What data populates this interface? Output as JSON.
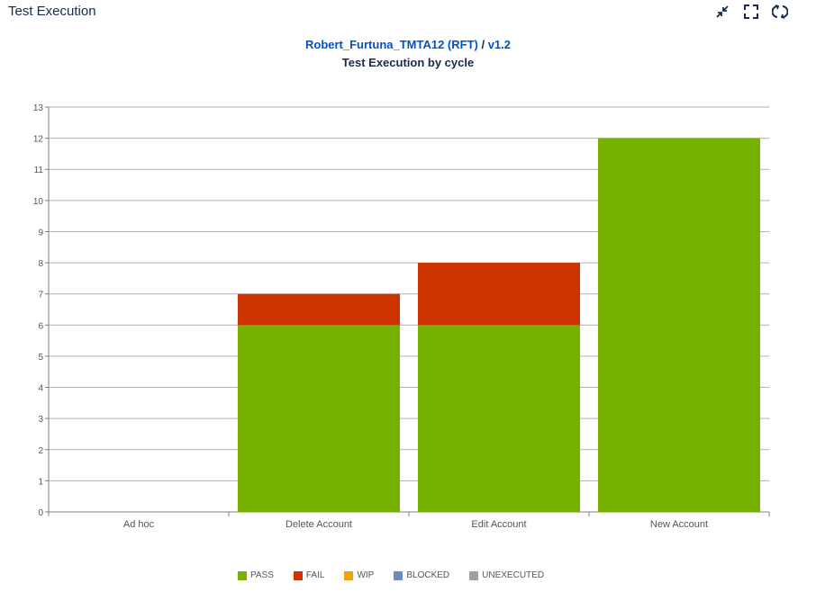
{
  "panel": {
    "title": "Test Execution"
  },
  "header": {
    "project_link": "Robert_Furtuna_TMTA12 (RFT)",
    "separator": " / ",
    "version": "v1.2"
  },
  "icons": {
    "collapse": "collapse-icon",
    "fullscreen": "fullscreen-icon",
    "refresh": "refresh-icon"
  },
  "colors": {
    "pass": "#76b000",
    "fail": "#cc3300",
    "wip": "#f0a30a",
    "blocked": "#6c8ebf",
    "unexecuted": "#a0a0a0",
    "link": "#0052cc"
  },
  "chart_data": {
    "type": "bar",
    "stacked": true,
    "title": "Test Execution by cycle",
    "xlabel": "",
    "ylabel": "",
    "ylim": [
      0,
      13
    ],
    "yticks": [
      0,
      1,
      2,
      3,
      4,
      5,
      6,
      7,
      8,
      9,
      10,
      11,
      12,
      13
    ],
    "grid": true,
    "legend_position": "bottom",
    "categories": [
      "Ad hoc",
      "Delete Account",
      "Edit Account",
      "New Account"
    ],
    "series": [
      {
        "name": "PASS",
        "color": "#76b000",
        "values": [
          0,
          6,
          6,
          12
        ]
      },
      {
        "name": "FAIL",
        "color": "#cc3300",
        "values": [
          0,
          1,
          2,
          0
        ]
      },
      {
        "name": "WIP",
        "color": "#f0a30a",
        "values": [
          0,
          0,
          0,
          0
        ]
      },
      {
        "name": "BLOCKED",
        "color": "#6c8ebf",
        "values": [
          0,
          0,
          0,
          0
        ]
      },
      {
        "name": "UNEXECUTED",
        "color": "#a0a0a0",
        "values": [
          0,
          0,
          0,
          0
        ]
      }
    ]
  }
}
